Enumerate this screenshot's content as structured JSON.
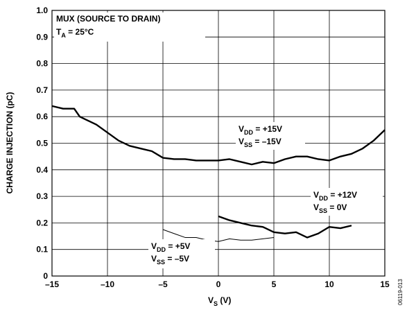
{
  "chart_data": {
    "type": "line",
    "title": {
      "text": "MUX (SOURCE TO DRAIN)"
    },
    "condition": {
      "text": "T",
      "sub": "A",
      "after": " = 25°C"
    },
    "x_label": {
      "text": "V",
      "sub": "S",
      "after": " (V)"
    },
    "y_label": "CHARGE INJECTION (pC)",
    "figure_id": "06119-013",
    "xlim": [
      -15,
      15
    ],
    "xticks": [
      {
        "value": -15,
        "label": "–15"
      },
      {
        "value": -10,
        "label": "–10"
      },
      {
        "value": -5,
        "label": "–5"
      },
      0,
      5,
      10,
      15
    ],
    "ylim": [
      0,
      1
    ],
    "yticks": [
      0,
      0.1,
      0.2,
      0.3,
      0.4,
      0.5,
      0.6,
      0.7,
      0.8,
      0.9,
      {
        "value": 1,
        "label": "1.0"
      }
    ],
    "grid": true,
    "series": [
      {
        "name": [
          {
            "text": "V",
            "sub": "DD",
            "after": " = +15V"
          },
          {
            "text": "V",
            "sub": "SS",
            "after": " = –15V"
          }
        ],
        "color": "#000000",
        "x": [
          -15,
          -14,
          -13,
          -12.5,
          -12,
          -11,
          -10,
          -9,
          -8,
          -7,
          -6,
          -5,
          -4,
          -3,
          -2,
          -1,
          0,
          1,
          2,
          3,
          4,
          5,
          6,
          7,
          8,
          9,
          10,
          11,
          12,
          13,
          14,
          15
        ],
        "values": [
          0.64,
          0.63,
          0.63,
          0.6,
          0.59,
          0.57,
          0.54,
          0.51,
          0.49,
          0.48,
          0.47,
          0.445,
          0.44,
          0.44,
          0.435,
          0.435,
          0.435,
          0.44,
          0.43,
          0.42,
          0.43,
          0.425,
          0.44,
          0.45,
          0.45,
          0.44,
          0.435,
          0.45,
          0.46,
          0.48,
          0.51,
          0.55
        ]
      },
      {
        "name": [
          {
            "text": "V",
            "sub": "DD",
            "after": " = +12V"
          },
          {
            "text": "V",
            "sub": "SS",
            "after": " = 0V"
          }
        ],
        "color": "#000000",
        "x": [
          0,
          1,
          2,
          3,
          4,
          5,
          6,
          7,
          8,
          9,
          10,
          11,
          12
        ],
        "values": [
          0.225,
          0.21,
          0.2,
          0.19,
          0.185,
          0.165,
          0.16,
          0.165,
          0.145,
          0.16,
          0.185,
          0.18,
          0.19
        ]
      },
      {
        "name": [
          {
            "text": "V",
            "sub": "DD",
            "after": " = +5V"
          },
          {
            "text": "V",
            "sub": "SS",
            "after": " = –5V"
          }
        ],
        "color": "#000000",
        "x": [
          -5,
          -4,
          -3,
          -2,
          -1,
          0,
          1,
          2,
          3,
          4,
          5
        ],
        "values": [
          0.175,
          0.16,
          0.145,
          0.145,
          0.135,
          0.13,
          0.14,
          0.135,
          0.135,
          0.14,
          0.145
        ]
      }
    ]
  }
}
